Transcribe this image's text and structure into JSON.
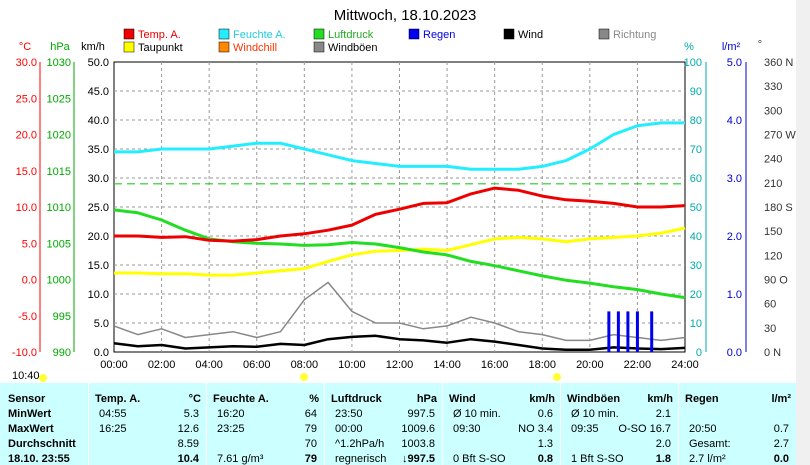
{
  "chart_data": {
    "type": "line",
    "title": "Mittwoch, 18.10.2023",
    "x_ticks": [
      "00:00",
      "02:00",
      "04:00",
      "06:00",
      "08:00",
      "10:00",
      "12:00",
      "14:00",
      "16:00",
      "18:00",
      "20:00",
      "22:00",
      "24:00"
    ],
    "axes": {
      "temp": {
        "unit": "°C",
        "ticks": [
          "30.0",
          "25.0",
          "20.0",
          "15.0",
          "10.0",
          "5.0",
          "0.0",
          "-5.0",
          "-10.0"
        ],
        "color": "#ff0000"
      },
      "press": {
        "unit": "hPa",
        "ticks": [
          "1030",
          "1025",
          "1020",
          "1015",
          "1010",
          "1005",
          "1000",
          "995",
          "990"
        ],
        "color": "#00aa00"
      },
      "wind": {
        "unit": "km/h",
        "ticks": [
          "50.0",
          "45.0",
          "40.0",
          "35.0",
          "30.0",
          "25.0",
          "20.0",
          "15.0",
          "10.0",
          "5.0",
          "0.0"
        ],
        "color": "#000000"
      },
      "hum": {
        "unit": "%",
        "ticks": [
          "100",
          "90",
          "80",
          "70",
          "60",
          "50",
          "40",
          "30",
          "20",
          "10",
          "0"
        ],
        "color": "#00aaaa"
      },
      "rain": {
        "unit": "l/m²",
        "ticks": [
          "5.0",
          "4.0",
          "3.0",
          "2.0",
          "1.0",
          "0.0"
        ],
        "color": "#0000cc"
      },
      "dir": {
        "unit": "°",
        "ticks": [
          "360 N",
          "330",
          "300",
          "270 W",
          "240",
          "210",
          "180 S",
          "150",
          "120",
          "90 O",
          "60",
          "30",
          "0 N"
        ],
        "color": "#333333"
      }
    },
    "legend": [
      {
        "name": "Temp. A.",
        "color": "#ee0000"
      },
      {
        "name": "Feuchte A.",
        "color": "#22eeff"
      },
      {
        "name": "Luftdruck",
        "color": "#22dd22"
      },
      {
        "name": "Regen",
        "color": "#0000ee"
      },
      {
        "name": "Wind",
        "color": "#000000"
      },
      {
        "name": "Richtung",
        "color": "#888888"
      },
      {
        "name": "Taupunkt",
        "color": "#ffff00"
      },
      {
        "name": "Windchill",
        "color": "#ff8800"
      },
      {
        "name": "Windböen",
        "color": "#888888"
      }
    ],
    "series": [
      {
        "name": "Temp. A.",
        "axis": "temp",
        "x": [
          0,
          1,
          2,
          3,
          4,
          5,
          6,
          7,
          8,
          9,
          10,
          11,
          12,
          13,
          14,
          15,
          16,
          17,
          18,
          19,
          20,
          21,
          22,
          23,
          24
        ],
        "values": [
          6.0,
          6.0,
          5.8,
          5.9,
          5.4,
          5.3,
          5.5,
          6.0,
          6.3,
          6.8,
          7.5,
          9.0,
          9.7,
          10.5,
          10.6,
          11.8,
          12.6,
          12.3,
          11.5,
          11.0,
          10.8,
          10.5,
          10.0,
          10.0,
          10.2
        ]
      },
      {
        "name": "Feuchte A.",
        "axis": "hum",
        "x": [
          0,
          1,
          2,
          3,
          4,
          5,
          6,
          7,
          8,
          9,
          10,
          11,
          12,
          13,
          14,
          15,
          16,
          17,
          18,
          19,
          20,
          21,
          22,
          23,
          24
        ],
        "values": [
          69,
          69,
          70,
          70,
          70,
          71,
          72,
          72,
          70,
          68,
          66,
          65,
          64,
          64,
          64,
          63,
          63,
          63,
          64,
          66,
          70,
          75,
          78,
          79,
          79
        ]
      },
      {
        "name": "Luftdruck",
        "axis": "press",
        "x": [
          0,
          1,
          2,
          3,
          4,
          5,
          6,
          7,
          8,
          9,
          10,
          11,
          12,
          13,
          14,
          15,
          16,
          17,
          18,
          19,
          20,
          21,
          22,
          23,
          24
        ],
        "values": [
          1009.6,
          1009.2,
          1008.2,
          1006.8,
          1005.6,
          1005.2,
          1005.0,
          1004.9,
          1004.7,
          1004.8,
          1005.1,
          1004.9,
          1004.4,
          1003.8,
          1003.4,
          1002.5,
          1001.9,
          1001.2,
          1000.5,
          999.9,
          999.5,
          999.0,
          998.6,
          998.0,
          997.5
        ]
      },
      {
        "name": "Taupunkt",
        "axis": "temp",
        "x": [
          0,
          1,
          2,
          3,
          4,
          5,
          6,
          7,
          8,
          9,
          10,
          11,
          12,
          13,
          14,
          15,
          16,
          17,
          18,
          19,
          20,
          21,
          22,
          23,
          24
        ],
        "values": [
          0.9,
          0.9,
          0.8,
          0.8,
          0.6,
          0.6,
          0.9,
          1.2,
          1.5,
          2.5,
          3.4,
          3.9,
          4.0,
          4.2,
          4.0,
          4.8,
          5.6,
          5.8,
          5.6,
          5.2,
          5.6,
          5.8,
          6.0,
          6.4,
          7.1
        ]
      },
      {
        "name": "Wind",
        "axis": "wind",
        "x": [
          0,
          1,
          2,
          3,
          4,
          5,
          6,
          7,
          8,
          9,
          10,
          11,
          12,
          13,
          14,
          15,
          16,
          17,
          18,
          19,
          20,
          21,
          22,
          23,
          24
        ],
        "values": [
          1.5,
          1.0,
          1.2,
          0.6,
          0.8,
          1.0,
          0.9,
          1.4,
          1.2,
          2.2,
          2.6,
          2.8,
          2.2,
          2.0,
          1.6,
          2.2,
          1.8,
          1.2,
          0.6,
          0.4,
          0.4,
          0.8,
          0.6,
          0.5,
          0.7
        ]
      },
      {
        "name": "Windböen",
        "axis": "wind",
        "x": [
          0,
          1,
          2,
          3,
          4,
          5,
          6,
          7,
          8,
          9,
          10,
          11,
          12,
          13,
          14,
          15,
          16,
          17,
          18,
          19,
          20,
          21,
          22,
          23,
          24
        ],
        "values": [
          4.5,
          3.0,
          4.0,
          2.5,
          3.0,
          3.5,
          2.5,
          3.5,
          9.0,
          12.0,
          7.0,
          5.0,
          5.0,
          4.0,
          4.5,
          6.0,
          5.0,
          3.5,
          3.0,
          2.0,
          2.0,
          3.0,
          2.5,
          2.0,
          2.5
        ]
      },
      {
        "name": "Regen",
        "axis": "rain",
        "type": "bar",
        "x": [
          20.8,
          21.2,
          21.6,
          22.0,
          22.6
        ],
        "values": [
          0.7,
          0.7,
          0.7,
          0.7,
          0.7
        ]
      }
    ],
    "reference_line": {
      "axis": "hum",
      "value": 58,
      "color": "#22cc22"
    },
    "markers": {
      "sunrise": "08:00",
      "sunset": "18:45",
      "time_now": "10:40"
    }
  },
  "table": {
    "headers": [
      {
        "label": "Sensor"
      },
      {
        "label": "Temp. A.",
        "unit": "°C"
      },
      {
        "label": "Feuchte A.",
        "unit": "%"
      },
      {
        "label": "Luftdruck",
        "unit": "hPa"
      },
      {
        "label": "Wind",
        "unit": "km/h"
      },
      {
        "label": "Windböen",
        "unit": "km/h"
      },
      {
        "label": "Regen",
        "unit": "l/m²"
      }
    ],
    "row_labels": [
      "MinWert",
      "MaxWert",
      "Durchschnitt",
      "18.10. 23:55"
    ],
    "temp": [
      [
        "04:55",
        "5.3"
      ],
      [
        "16:25",
        "12.6"
      ],
      [
        "",
        "8.59"
      ],
      [
        "",
        "10.4"
      ]
    ],
    "hum": [
      [
        "16:20",
        "64"
      ],
      [
        "23:25",
        "79"
      ],
      [
        "",
        "70"
      ],
      [
        "7.61 g/m³",
        "79"
      ]
    ],
    "press": [
      [
        "23:50",
        "997.5"
      ],
      [
        "00:00",
        "1009.6"
      ],
      [
        "^1.2hPa/h",
        "1003.8"
      ],
      [
        "regnerisch",
        "↓997.5"
      ]
    ],
    "wind": [
      [
        "Ø 10 min.",
        "0.6"
      ],
      [
        "09:30",
        "NO 3.4"
      ],
      [
        "",
        "1.3"
      ],
      [
        "0 Bft S-SO",
        "0.8"
      ]
    ],
    "gust": [
      [
        "Ø 10 min.",
        "2.1"
      ],
      [
        "09:35",
        "O-SO 16.7"
      ],
      [
        "",
        "2.0"
      ],
      [
        "1 Bft S-SO",
        "1.8"
      ]
    ],
    "rain": [
      [
        "",
        ""
      ],
      [
        "20:50",
        "0.7"
      ],
      [
        "Gesamt:",
        "2.7"
      ],
      [
        "2.7 l/m²",
        "0.0"
      ]
    ]
  }
}
